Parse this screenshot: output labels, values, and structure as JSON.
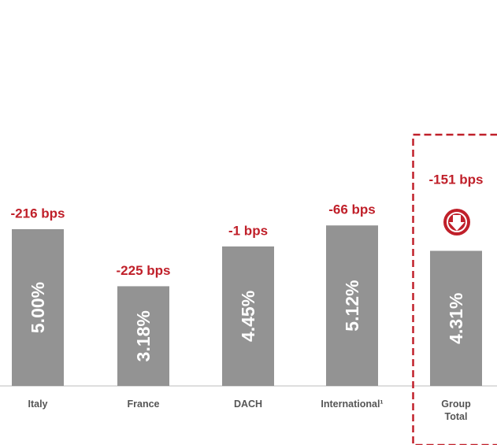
{
  "chart_data": {
    "type": "bar",
    "categories": [
      "Italy",
      "France",
      "DACH",
      "International¹",
      "Group Total"
    ],
    "values": [
      5.0,
      3.18,
      4.45,
      5.12,
      4.31
    ],
    "value_labels": [
      "5.00%",
      "3.18%",
      "4.45%",
      "5.12%",
      "4.31%"
    ],
    "annotations": [
      "-216 bps",
      "-225 bps",
      "-1 bps",
      "-66 bps",
      "-151 bps"
    ],
    "color": "#939393"
  }
}
